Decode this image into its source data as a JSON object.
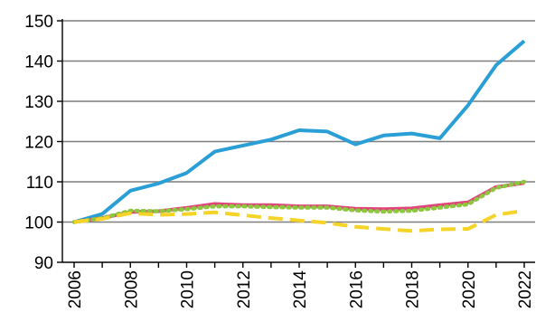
{
  "chart_data": {
    "type": "line",
    "title": "",
    "xlabel": "",
    "ylabel": "",
    "x": [
      2006,
      2007,
      2008,
      2009,
      2010,
      2011,
      2012,
      2013,
      2014,
      2015,
      2016,
      2017,
      2018,
      2019,
      2020,
      2021,
      2022
    ],
    "xticks": [
      "2006",
      "2008",
      "2010",
      "2012",
      "2014",
      "2016",
      "2018",
      "2020",
      "2022"
    ],
    "yticks": [
      "90",
      "100",
      "110",
      "120",
      "130",
      "140",
      "150"
    ],
    "ylim": [
      90,
      150
    ],
    "grid": true,
    "legend": "none",
    "series": [
      {
        "color": "#2a9fd6",
        "style": "solid",
        "values": [
          100,
          102,
          107.8,
          109.6,
          112.2,
          117.5,
          119.0,
          120.5,
          122.8,
          122.5,
          119.3,
          121.5,
          122.0,
          120.8,
          129.0,
          139.0,
          145.0
        ]
      },
      {
        "color": "#e0457b",
        "style": "solid",
        "values": [
          100,
          101,
          102.5,
          102.7,
          103.5,
          104.5,
          104.2,
          104.2,
          103.9,
          103.9,
          103.3,
          103.2,
          103.4,
          104.2,
          104.9,
          108.7,
          109.7
        ]
      },
      {
        "color": "#8dc63f",
        "style": "dotted",
        "values": [
          100,
          101,
          102.8,
          102.7,
          103.2,
          103.9,
          103.9,
          103.7,
          103.6,
          103.6,
          102.9,
          102.6,
          102.8,
          103.6,
          104.4,
          108.5,
          110.0
        ]
      },
      {
        "color": "#f5d327",
        "style": "dashed",
        "values": [
          100,
          100.8,
          102.2,
          101.8,
          102.0,
          102.4,
          101.7,
          101.0,
          100.4,
          99.8,
          98.8,
          98.3,
          97.8,
          98.2,
          98.3,
          101.8,
          102.8
        ]
      }
    ]
  }
}
